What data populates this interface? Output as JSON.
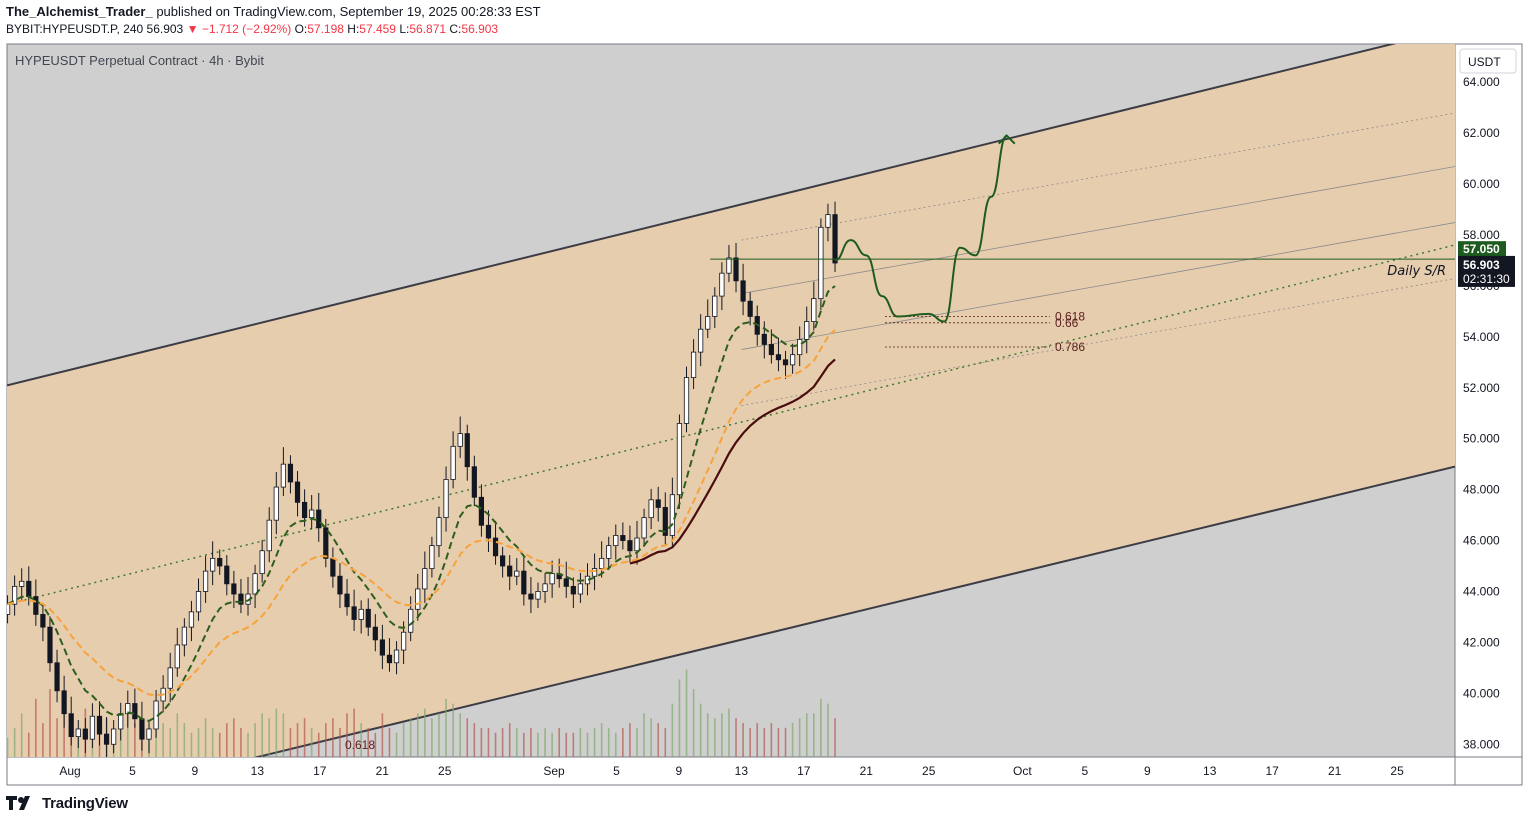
{
  "header": {
    "author": "The_Alchemist_Trader_",
    "published": "published on TradingView.com, September 19, 2025 00:28:33 EST",
    "symbol": "BYBIT:HYPEUSDT.P, 240",
    "last": "56.903",
    "change_arrow": "▼",
    "change": "−1.712 (−2.92%)",
    "o_label": "O:",
    "o": "57.198",
    "h_label": "H:",
    "h": "57.459",
    "l_label": "L:",
    "l": "56.871",
    "c_label": "C:",
    "c": "56.903"
  },
  "chart_title": "HYPEUSDT Perpetual Contract · 4h · Bybit",
  "currency": "USDT",
  "footer": {
    "brand": "TradingView",
    "logo_icon": "tradingview-logo-icon"
  },
  "colors": {
    "channel_fill": "#e6cdae",
    "up_candle": "#ffffff",
    "down_candle": "#131722",
    "ema_fast": "#2e5e1e",
    "ema_slow": "#f7a23b",
    "ma_long": "#4a0d0d",
    "projection": "#1e5b1f",
    "price_tag": "#131722",
    "sr_tag": "#1e5b1f",
    "background_zone": "#cfcfcf"
  },
  "chart_data": {
    "type": "candlestick",
    "ylim": [
      37.5,
      65.5
    ],
    "y_ticks": [
      "64.000",
      "62.000",
      "60.000",
      "58.000",
      "56.000",
      "54.000",
      "52.000",
      "50.000",
      "48.000",
      "46.000",
      "44.000",
      "42.000",
      "40.000",
      "38.000"
    ],
    "x_ticks": [
      "Aug",
      "5",
      "9",
      "13",
      "17",
      "21",
      "25",
      "Sep",
      "5",
      "9",
      "13",
      "17",
      "21",
      "25",
      "Oct",
      "5",
      "9",
      "13",
      "17",
      "21",
      "25"
    ],
    "last_price": 56.903,
    "countdown": "02:31:30",
    "sr_level": 57.05,
    "sr_label": "Daily S/R",
    "fib_levels": [
      {
        "label": "0.618",
        "price": 54.8
      },
      {
        "label": "0.66",
        "price": 54.55
      },
      {
        "label": "0.786",
        "price": 53.6
      }
    ],
    "fib_volume_label": "0.618",
    "channel": {
      "upper": [
        {
          "date": "2025-07-28",
          "price": 52.1
        },
        {
          "date": "2025-10-28",
          "price": 66.0
        }
      ],
      "lower": [
        {
          "date": "2025-08-11",
          "price": 37.2
        },
        {
          "date": "2025-10-28",
          "price": 48.8
        }
      ],
      "midline": [
        {
          "date": "2025-07-28",
          "price": 43.5
        },
        {
          "date": "2025-10-28",
          "price": 57.5
        }
      ]
    },
    "closes": [
      43.5,
      44.2,
      44.4,
      43.8,
      43.1,
      42.6,
      41.2,
      40.1,
      39.2,
      38.3,
      38.6,
      38.2,
      39.1,
      38.4,
      38.0,
      38.6,
      39.2,
      39.6,
      39.0,
      38.2,
      38.6,
      39.7,
      40.2,
      41.0,
      41.9,
      42.6,
      43.2,
      44.0,
      44.8,
      45.3,
      45.0,
      44.3,
      43.9,
      43.5,
      43.9,
      44.7,
      45.6,
      46.8,
      48.1,
      49.0,
      48.3,
      47.5,
      46.9,
      47.2,
      46.5,
      45.3,
      44.6,
      43.9,
      43.4,
      42.9,
      43.3,
      42.6,
      42.1,
      41.5,
      41.2,
      41.7,
      42.4,
      43.3,
      44.1,
      44.9,
      45.8,
      46.9,
      48.4,
      49.7,
      50.2,
      48.9,
      47.7,
      46.6,
      46.1,
      45.4,
      45.0,
      44.6,
      44.8,
      43.9,
      43.7,
      44.0,
      44.3,
      44.7,
      44.5,
      44.2,
      43.9,
      44.3,
      44.6,
      44.9,
      45.3,
      45.8,
      46.2,
      46.0,
      45.6,
      46.1,
      46.9,
      47.6,
      47.3,
      46.2,
      47.8,
      50.6,
      52.4,
      53.4,
      54.3,
      54.8,
      55.6,
      56.5,
      57.1,
      56.2,
      55.4,
      54.8,
      54.1,
      53.7,
      53.3,
      53.1,
      52.9,
      53.3,
      53.9,
      54.6,
      55.5,
      58.3,
      58.8,
      56.9
    ],
    "projection_path": [
      {
        "date": "2025-09-19",
        "price": 57.0
      },
      {
        "date": "2025-09-20",
        "price": 57.8
      },
      {
        "date": "2025-09-21",
        "price": 57.2
      },
      {
        "date": "2025-09-22",
        "price": 55.6
      },
      {
        "date": "2025-09-23",
        "price": 54.8
      },
      {
        "date": "2025-09-25",
        "price": 54.9
      },
      {
        "date": "2025-09-26",
        "price": 54.6
      },
      {
        "date": "2025-09-27",
        "price": 57.5
      },
      {
        "date": "2025-09-28",
        "price": 57.2
      },
      {
        "date": "2025-09-29",
        "price": 59.5
      },
      {
        "date": "2025-09-30",
        "price": 61.9
      }
    ],
    "volume_ylim": [
      0,
      100
    ],
    "volumes": [
      20,
      30,
      45,
      25,
      60,
      35,
      70,
      40,
      55,
      30,
      25,
      50,
      35,
      30,
      40,
      25,
      30,
      45,
      35,
      25,
      30,
      40,
      35,
      30,
      45,
      35,
      25,
      30,
      40,
      30,
      25,
      35,
      40,
      30,
      25,
      35,
      45,
      40,
      50,
      45,
      30,
      35,
      40,
      30,
      25,
      35,
      40,
      30,
      45,
      50,
      35,
      30,
      25,
      45,
      30,
      25,
      35,
      40,
      45,
      50,
      40,
      45,
      60,
      55,
      45,
      40,
      35,
      30,
      30,
      25,
      30,
      35,
      30,
      25,
      30,
      25,
      30,
      25,
      30,
      25,
      25,
      30,
      25,
      30,
      35,
      30,
      25,
      30,
      35,
      30,
      45,
      40,
      35,
      30,
      55,
      80,
      90,
      70,
      55,
      45,
      40,
      45,
      50,
      40,
      35,
      30,
      35,
      30,
      35,
      30,
      30,
      35,
      40,
      45,
      45,
      60,
      55,
      40
    ]
  }
}
